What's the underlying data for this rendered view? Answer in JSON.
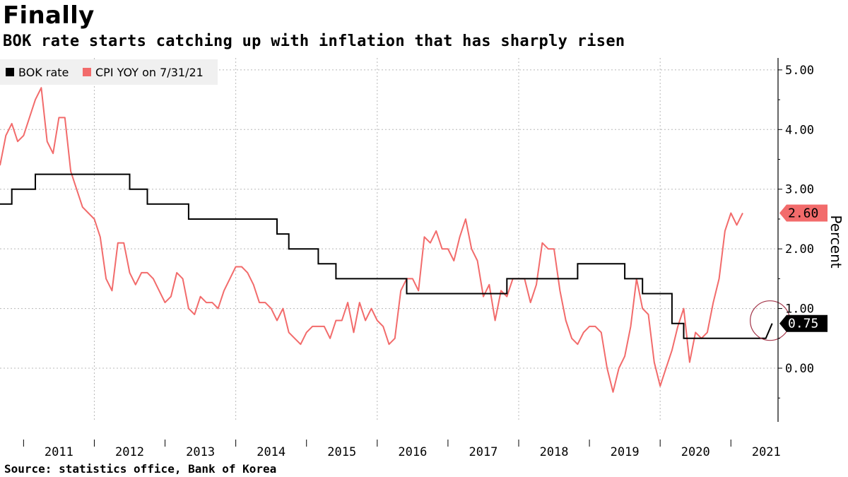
{
  "header": {
    "title": "Finally",
    "subtitle": "BOK rate starts catching up with inflation that has sharply risen"
  },
  "footer": {
    "source": "Source: statistics office, Bank of Korea"
  },
  "colors": {
    "bok_rate": "#000000",
    "cpi": "#f26b6b",
    "grid": "#b8b8b8",
    "legend_bg": "#f0f0f0"
  },
  "chart_data": {
    "type": "line",
    "title": "Finally",
    "subtitle": "BOK rate starts catching up with inflation that has sharply risen",
    "xlabel": "",
    "ylabel": "Percent",
    "xlim": [
      "2010-09",
      "2021-09"
    ],
    "ylim": [
      -0.9,
      5.2
    ],
    "y_ticks": [
      "5.00",
      "4.00",
      "3.00",
      "2.00",
      "1.00",
      "0.00"
    ],
    "x_ticks": [
      "2011",
      "2012",
      "2013",
      "2014",
      "2015",
      "2016",
      "2017",
      "2018",
      "2019",
      "2020",
      "2021"
    ],
    "grid": true,
    "legend_position": "top-left",
    "legend": [
      "BOK rate",
      "CPI YOY on 7/31/21"
    ],
    "annotations": [
      {
        "series": "CPI YOY on 7/31/21",
        "label": "2.60"
      },
      {
        "series": "BOK rate",
        "label": "0.75",
        "circled": true
      }
    ],
    "series": [
      {
        "name": "BOK rate",
        "type": "step",
        "points": [
          [
            "2010-09",
            2.75
          ],
          [
            "2010-11",
            3.0
          ],
          [
            "2011-01",
            3.0
          ],
          [
            "2011-03",
            3.25
          ],
          [
            "2012-07",
            3.0
          ],
          [
            "2012-10",
            2.75
          ],
          [
            "2013-05",
            2.5
          ],
          [
            "2014-08",
            2.25
          ],
          [
            "2014-10",
            2.0
          ],
          [
            "2015-03",
            1.75
          ],
          [
            "2015-06",
            1.5
          ],
          [
            "2016-06",
            1.25
          ],
          [
            "2017-11",
            1.5
          ],
          [
            "2018-11",
            1.75
          ],
          [
            "2019-07",
            1.5
          ],
          [
            "2019-10",
            1.25
          ],
          [
            "2020-03",
            0.75
          ],
          [
            "2020-05",
            0.5
          ],
          [
            "2021-08",
            0.75
          ]
        ]
      },
      {
        "name": "CPI YOY on 7/31/21",
        "type": "line",
        "points": [
          [
            "2010-09",
            3.4
          ],
          [
            "2010-10",
            3.9
          ],
          [
            "2010-11",
            4.1
          ],
          [
            "2010-12",
            3.8
          ],
          [
            "2011-01",
            3.9
          ],
          [
            "2011-02",
            4.2
          ],
          [
            "2011-03",
            4.5
          ],
          [
            "2011-04",
            4.7
          ],
          [
            "2011-05",
            3.8
          ],
          [
            "2011-06",
            3.6
          ],
          [
            "2011-07",
            4.2
          ],
          [
            "2011-08",
            4.2
          ],
          [
            "2011-09",
            3.3
          ],
          [
            "2011-10",
            3.0
          ],
          [
            "2011-11",
            2.7
          ],
          [
            "2011-12",
            2.6
          ],
          [
            "2012-01",
            2.5
          ],
          [
            "2012-02",
            2.2
          ],
          [
            "2012-03",
            1.5
          ],
          [
            "2012-04",
            1.3
          ],
          [
            "2012-05",
            2.1
          ],
          [
            "2012-06",
            2.1
          ],
          [
            "2012-07",
            1.6
          ],
          [
            "2012-08",
            1.4
          ],
          [
            "2012-09",
            1.6
          ],
          [
            "2012-10",
            1.6
          ],
          [
            "2012-11",
            1.5
          ],
          [
            "2012-12",
            1.3
          ],
          [
            "2013-01",
            1.1
          ],
          [
            "2013-02",
            1.2
          ],
          [
            "2013-03",
            1.6
          ],
          [
            "2013-04",
            1.5
          ],
          [
            "2013-05",
            1.0
          ],
          [
            "2013-06",
            0.9
          ],
          [
            "2013-07",
            1.2
          ],
          [
            "2013-08",
            1.1
          ],
          [
            "2013-09",
            1.1
          ],
          [
            "2013-10",
            1.0
          ],
          [
            "2013-11",
            1.3
          ],
          [
            "2013-12",
            1.5
          ],
          [
            "2014-01",
            1.7
          ],
          [
            "2014-02",
            1.7
          ],
          [
            "2014-03",
            1.6
          ],
          [
            "2014-04",
            1.4
          ],
          [
            "2014-05",
            1.1
          ],
          [
            "2014-06",
            1.1
          ],
          [
            "2014-07",
            1.0
          ],
          [
            "2014-08",
            0.8
          ],
          [
            "2014-09",
            1.0
          ],
          [
            "2014-10",
            0.6
          ],
          [
            "2014-11",
            0.5
          ],
          [
            "2014-12",
            0.4
          ],
          [
            "2015-01",
            0.6
          ],
          [
            "2015-02",
            0.7
          ],
          [
            "2015-03",
            0.7
          ],
          [
            "2015-04",
            0.7
          ],
          [
            "2015-05",
            0.5
          ],
          [
            "2015-06",
            0.8
          ],
          [
            "2015-07",
            0.8
          ],
          [
            "2015-08",
            1.1
          ],
          [
            "2015-09",
            0.6
          ],
          [
            "2015-10",
            1.1
          ],
          [
            "2015-11",
            0.8
          ],
          [
            "2015-12",
            1.0
          ],
          [
            "2016-01",
            0.8
          ],
          [
            "2016-02",
            0.7
          ],
          [
            "2016-03",
            0.4
          ],
          [
            "2016-04",
            0.5
          ],
          [
            "2016-05",
            1.3
          ],
          [
            "2016-06",
            1.5
          ],
          [
            "2016-07",
            1.5
          ],
          [
            "2016-08",
            1.3
          ],
          [
            "2016-09",
            2.2
          ],
          [
            "2016-10",
            2.1
          ],
          [
            "2016-11",
            2.3
          ],
          [
            "2016-12",
            2.0
          ],
          [
            "2017-01",
            2.0
          ],
          [
            "2017-02",
            1.8
          ],
          [
            "2017-03",
            2.2
          ],
          [
            "2017-04",
            2.5
          ],
          [
            "2017-05",
            2.0
          ],
          [
            "2017-06",
            1.8
          ],
          [
            "2017-07",
            1.2
          ],
          [
            "2017-08",
            1.4
          ],
          [
            "2017-09",
            0.8
          ],
          [
            "2017-10",
            1.3
          ],
          [
            "2017-11",
            1.2
          ],
          [
            "2017-12",
            1.5
          ],
          [
            "2018-01",
            1.5
          ],
          [
            "2018-02",
            1.5
          ],
          [
            "2018-03",
            1.1
          ],
          [
            "2018-04",
            1.4
          ],
          [
            "2018-05",
            2.1
          ],
          [
            "2018-06",
            2.0
          ],
          [
            "2018-07",
            2.0
          ],
          [
            "2018-08",
            1.3
          ],
          [
            "2018-09",
            0.8
          ],
          [
            "2018-10",
            0.5
          ],
          [
            "2018-11",
            0.4
          ],
          [
            "2018-12",
            0.6
          ],
          [
            "2019-01",
            0.7
          ],
          [
            "2019-02",
            0.7
          ],
          [
            "2019-03",
            0.6
          ],
          [
            "2019-04",
            0.0
          ],
          [
            "2019-05",
            -0.4
          ],
          [
            "2019-06",
            0.0
          ],
          [
            "2019-07",
            0.2
          ],
          [
            "2019-08",
            0.7
          ],
          [
            "2019-09",
            1.5
          ],
          [
            "2019-10",
            1.0
          ],
          [
            "2019-11",
            0.9
          ],
          [
            "2019-12",
            0.1
          ],
          [
            "2020-01",
            -0.3
          ],
          [
            "2020-02",
            0.0
          ],
          [
            "2020-03",
            0.3
          ],
          [
            "2020-04",
            0.7
          ],
          [
            "2020-05",
            1.0
          ],
          [
            "2020-06",
            0.1
          ],
          [
            "2020-07",
            0.6
          ],
          [
            "2020-08",
            0.5
          ],
          [
            "2020-09",
            0.6
          ],
          [
            "2020-10",
            1.1
          ],
          [
            "2020-11",
            1.5
          ],
          [
            "2020-12",
            2.3
          ],
          [
            "2021-01",
            2.6
          ],
          [
            "2021-02",
            2.4
          ],
          [
            "2021-03",
            2.6
          ]
        ]
      }
    ]
  }
}
